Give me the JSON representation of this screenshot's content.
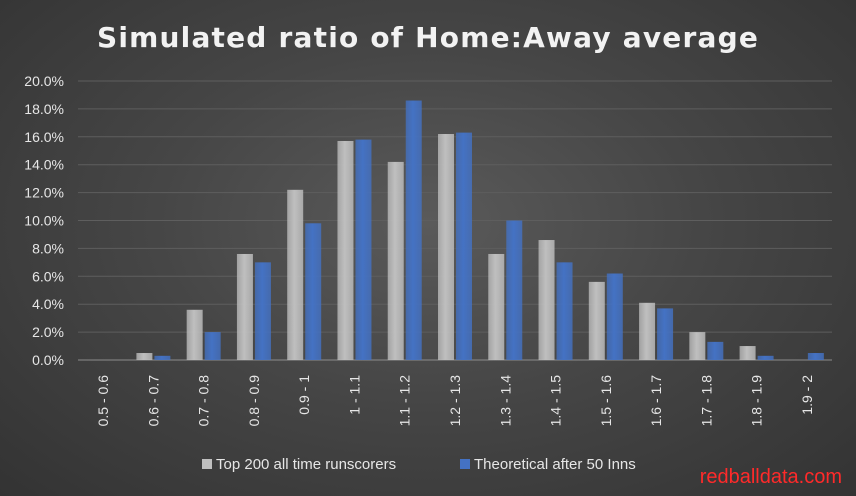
{
  "chart_data": {
    "type": "bar",
    "title": "Simulated ratio of Home:Away average",
    "categories": [
      "0.5 - 0.6",
      "0.6 - 0.7",
      "0.7 - 0.8",
      "0.8 - 0.9",
      "0.9 - 1",
      "1 - 1.1",
      "1.1 - 1.2",
      "1.2 - 1.3",
      "1.3 - 1.4",
      "1.4 - 1.5",
      "1.5 - 1.6",
      "1.6 - 1.7",
      "1.7 - 1.8",
      "1.8 - 1.9",
      "1.9 - 2"
    ],
    "series": [
      {
        "name": "Top 200 all time runscorers",
        "color": "#bfbfbf",
        "values": [
          0.0,
          0.5,
          3.6,
          7.6,
          12.2,
          15.7,
          14.2,
          16.2,
          7.6,
          8.6,
          5.6,
          4.1,
          2.0,
          1.0,
          0.0
        ]
      },
      {
        "name": "Theoretical after 50 Inns",
        "color": "#4472c4",
        "values": [
          0.0,
          0.3,
          2.0,
          7.0,
          9.8,
          15.8,
          18.6,
          16.3,
          10.0,
          7.0,
          6.2,
          3.7,
          1.3,
          0.3,
          0.5
        ]
      }
    ],
    "ylim": [
      0,
      20
    ],
    "yticks": [
      "0.0%",
      "2.0%",
      "4.0%",
      "6.0%",
      "8.0%",
      "10.0%",
      "12.0%",
      "14.0%",
      "16.0%",
      "18.0%",
      "20.0%"
    ],
    "grid": true,
    "legend_position": "bottom"
  },
  "watermark": "redballdata.com"
}
